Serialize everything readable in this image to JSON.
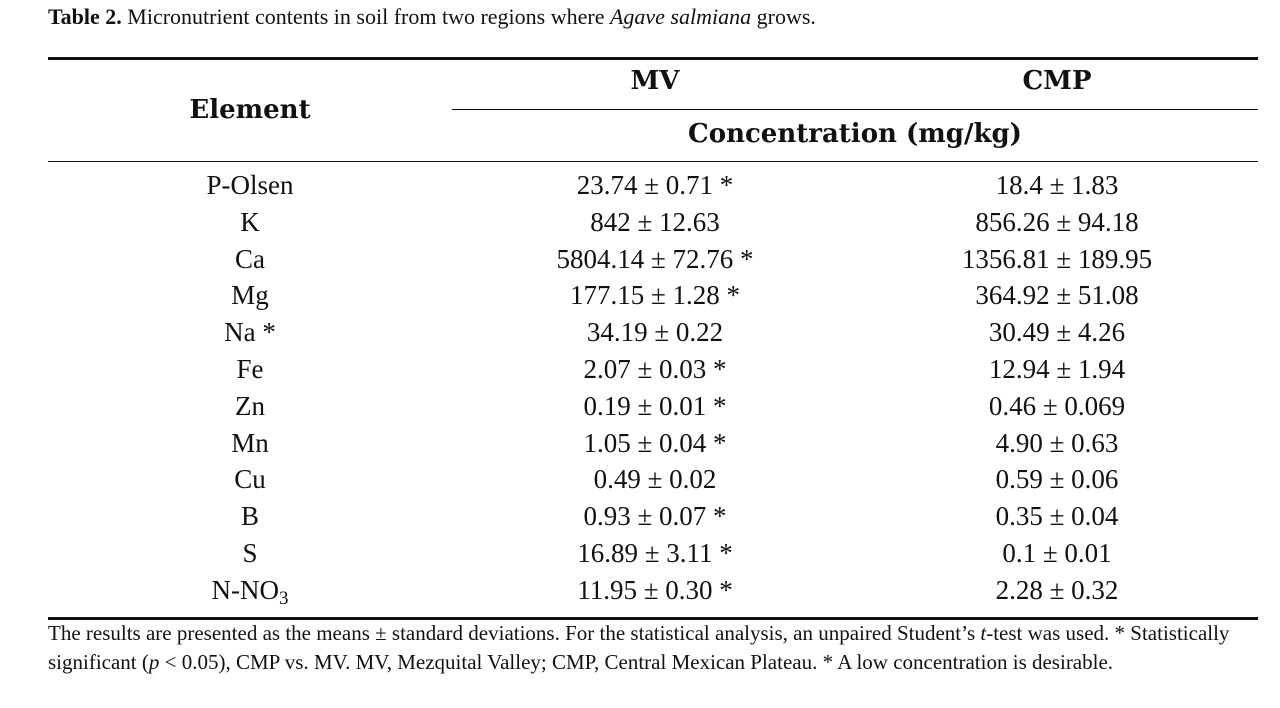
{
  "caption": {
    "label": "Table 2.",
    "text_before": " Micronutrient contents in soil from two regions where ",
    "species": "Agave salmiana",
    "text_after": " grows."
  },
  "header": {
    "element": "Element",
    "mv": "MV",
    "cmp": "CMP",
    "unit": "Concentration (mg/kg)"
  },
  "rows": [
    {
      "element": "P-Olsen",
      "sub": "",
      "mv": "23.74 ± 0.71 *",
      "cmp": "18.4 ± 1.83"
    },
    {
      "element": "K",
      "sub": "",
      "mv": "842 ± 12.63",
      "cmp": "856.26 ± 94.18"
    },
    {
      "element": "Ca",
      "sub": "",
      "mv": "5804.14 ± 72.76 *",
      "cmp": "1356.81 ± 189.95"
    },
    {
      "element": "Mg",
      "sub": "",
      "mv": "177.15 ± 1.28 *",
      "cmp": "364.92 ± 51.08"
    },
    {
      "element": "Na *",
      "sub": "",
      "mv": "34.19 ± 0.22",
      "cmp": "30.49 ± 4.26"
    },
    {
      "element": "Fe",
      "sub": "",
      "mv": "2.07 ± 0.03 *",
      "cmp": "12.94 ± 1.94"
    },
    {
      "element": "Zn",
      "sub": "",
      "mv": "0.19 ± 0.01 *",
      "cmp": "0.46 ± 0.069"
    },
    {
      "element": "Mn",
      "sub": "",
      "mv": "1.05 ± 0.04 *",
      "cmp": "4.90 ± 0.63"
    },
    {
      "element": "Cu",
      "sub": "",
      "mv": "0.49 ± 0.02",
      "cmp": "0.59 ± 0.06"
    },
    {
      "element": "B",
      "sub": "",
      "mv": "0.93 ± 0.07 *",
      "cmp": "0.35 ± 0.04"
    },
    {
      "element": "S",
      "sub": "",
      "mv": "16.89 ± 3.11 *",
      "cmp": "0.1 ± 0.01"
    },
    {
      "element": "N-NO",
      "sub": "3",
      "mv": "11.95 ± 0.30 *",
      "cmp": "2.28 ± 0.32"
    }
  ],
  "footnote": {
    "p1": "The results are presented as the means ± standard deviations. For the statistical analysis, an unpaired Student’s ",
    "t": "t",
    "p2": "-test was used. * Statistically significant (",
    "p": "p",
    "p3": " < 0.05), CMP vs. MV. MV, Mezquital Valley; CMP, Central Mexican Plateau. * A low concentration is desirable."
  }
}
